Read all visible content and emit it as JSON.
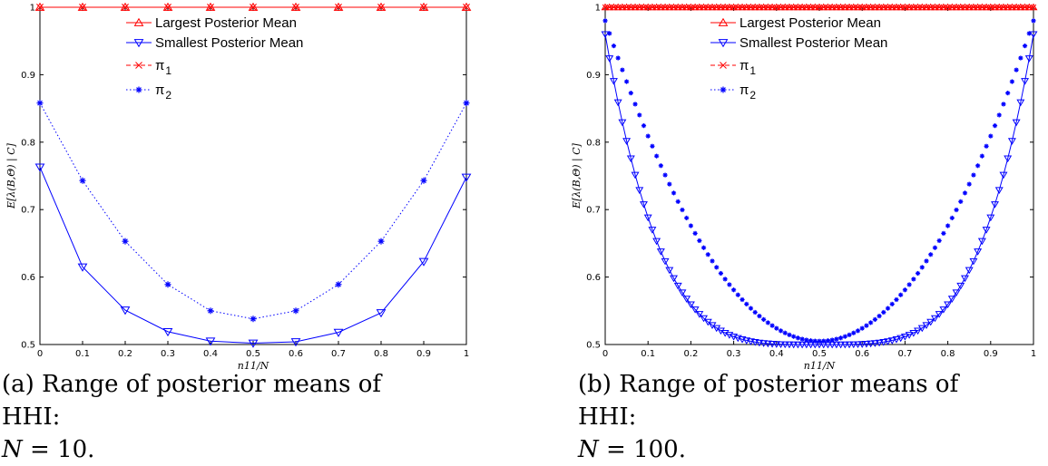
{
  "colors": {
    "red": "#ff0000",
    "blue": "#0000ff",
    "axis": "#000000"
  },
  "captions": [
    {
      "label": "(a)",
      "text": "Range of posterior means of HHI:",
      "eq_lhs": "N",
      "eq_rhs": "= 10."
    },
    {
      "label": "(b)",
      "text": "Range of posterior means of HHI:",
      "eq_lhs": "N",
      "eq_rhs": "= 100."
    }
  ],
  "chart_data": [
    {
      "type": "line",
      "xlabel": "n11/N",
      "ylabel": "E[λ(B,Θ) | C]",
      "xlim": [
        0,
        1
      ],
      "ylim": [
        0.5,
        1
      ],
      "xticks": [
        "0",
        "0.1",
        "0.2",
        "0.3",
        "0.4",
        "0.5",
        "0.6",
        "0.7",
        "0.8",
        "0.9",
        "1"
      ],
      "yticks": [
        "0.5",
        "0.6",
        "0.7",
        "0.8",
        "0.9",
        "1"
      ],
      "legend_position": "top-center",
      "x": [
        0,
        0.1,
        0.2,
        0.3,
        0.4,
        0.5,
        0.6,
        0.7,
        0.8,
        0.9,
        1
      ],
      "series": [
        {
          "name": "Largest Posterior Mean",
          "values": [
            1,
            1,
            1,
            1,
            1,
            1,
            1,
            1,
            1,
            1,
            1
          ]
        },
        {
          "name": "Smallest Posterior Mean",
          "values": [
            0.763,
            0.615,
            0.551,
            0.519,
            0.505,
            0.502,
            0.504,
            0.518,
            0.547,
            0.623,
            0.748
          ]
        },
        {
          "name": "π",
          "subscript": "1",
          "values": [
            1,
            1,
            1,
            1,
            1,
            1,
            1,
            1,
            1,
            1,
            1
          ]
        },
        {
          "name": "π",
          "subscript": "2",
          "values": [
            0.858,
            0.743,
            0.653,
            0.589,
            0.55,
            0.538,
            0.55,
            0.589,
            0.653,
            0.743,
            0.858
          ]
        }
      ]
    },
    {
      "type": "line",
      "xlabel": "n11/N",
      "ylabel": "E[λ(B,Θ) | C]",
      "xlim": [
        0,
        1
      ],
      "ylim": [
        0.5,
        1
      ],
      "xticks": [
        "0",
        "0.1",
        "0.2",
        "0.3",
        "0.4",
        "0.5",
        "0.6",
        "0.7",
        "0.8",
        "0.9",
        "1"
      ],
      "yticks": [
        "0.5",
        "0.6",
        "0.7",
        "0.8",
        "0.9",
        "1"
      ],
      "legend_position": "top-center",
      "n_points": 101,
      "series": [
        {
          "name": "Largest Posterior Mean",
          "formula": "constant",
          "value": 1
        },
        {
          "name": "Smallest Posterior Mean",
          "formula": "0.5 + 0.46*|2x-1|^4",
          "value_at_0": 0.96,
          "value_at_0.5": 0.5
        },
        {
          "name": "π",
          "subscript": "1",
          "formula": "constant",
          "value": 1
        },
        {
          "name": "π",
          "subscript": "2",
          "formula": "0.505 + 0.475*(2x-1)^2",
          "value_at_0": 0.98,
          "value_at_0.5": 0.505
        }
      ]
    }
  ]
}
